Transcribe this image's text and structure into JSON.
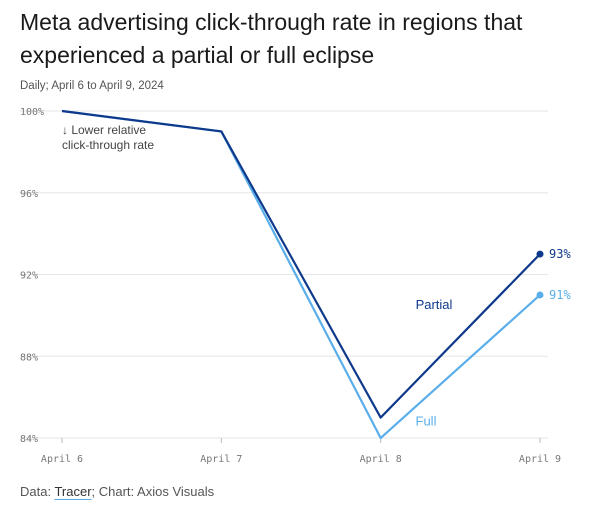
{
  "header": {
    "title": "Meta advertising click-through rate in regions that experienced a partial or full eclipse",
    "subtitle": "Daily; April 6 to April 9, 2024"
  },
  "footer": {
    "prefix": "Data: ",
    "source": "Tracer",
    "suffix": "; Chart: Axios Visuals"
  },
  "colors": {
    "partial": "#0f3a8c",
    "full": "#5aaeea",
    "grid": "#e6e6e6"
  },
  "chart_data": {
    "type": "line",
    "categories": [
      "April 6",
      "April 7",
      "April 8",
      "April 9"
    ],
    "ylim": [
      84,
      100
    ],
    "yticks": [
      100,
      96,
      92,
      88,
      84
    ],
    "ytick_labels": [
      "100%",
      "96%",
      "92%",
      "88%",
      "84%"
    ],
    "grid": true,
    "annotation": [
      "↓ Lower relative",
      "click-through rate"
    ],
    "series": [
      {
        "name": "Partial",
        "values": [
          100,
          99,
          85,
          93
        ],
        "end_label": "93%",
        "color_key": "partial"
      },
      {
        "name": "Full",
        "values": [
          100,
          99,
          84,
          91
        ],
        "end_label": "91%",
        "color_key": "full"
      }
    ]
  }
}
